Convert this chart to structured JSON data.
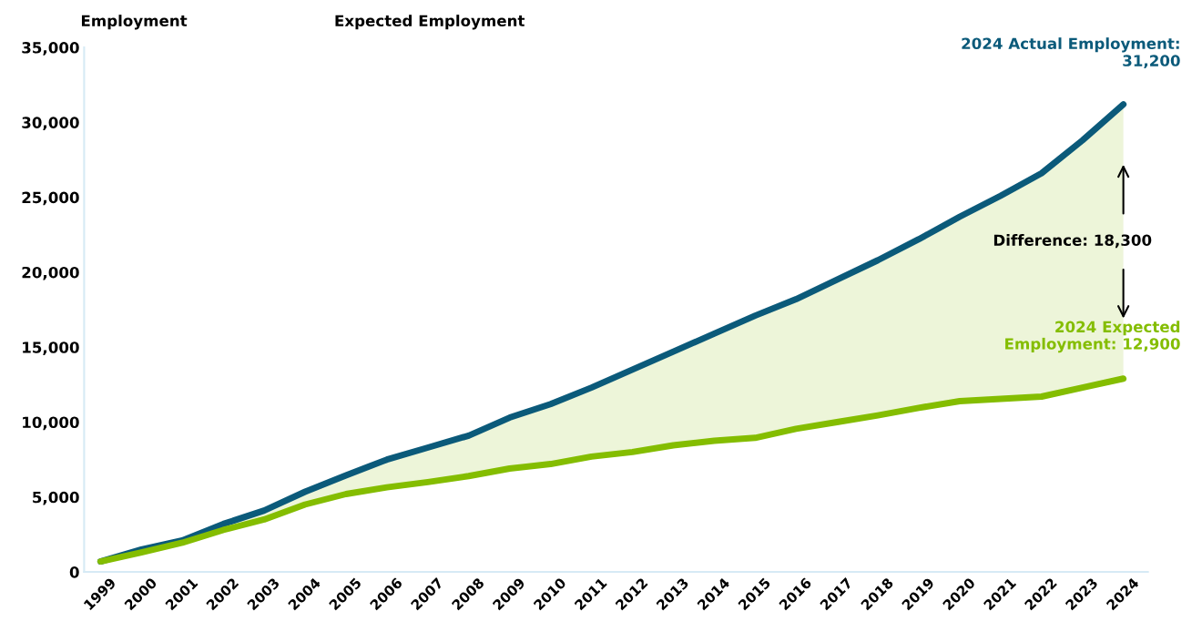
{
  "chart_data": {
    "type": "line",
    "ylabel": "Employment",
    "categories": [
      "1999",
      "2000",
      "2001",
      "2002",
      "2003",
      "2004",
      "2005",
      "2006",
      "2007",
      "2008",
      "2009",
      "2010",
      "2011",
      "2012",
      "2013",
      "2014",
      "2015",
      "2016",
      "2017",
      "2018",
      "2019",
      "2020",
      "2021",
      "2022",
      "2023",
      "2024"
    ],
    "series": [
      {
        "color": "#0b5a7a",
        "values": [
          700,
          1500,
          2100,
          3200,
          4100,
          5350,
          6450,
          7500,
          8300,
          9100,
          10300,
          11200,
          12300,
          13500,
          14700,
          15900,
          17100,
          18200,
          19500,
          20800,
          22200,
          23700,
          25100,
          26600,
          28800,
          31200
        ]
      },
      {
        "color": "#84bd00",
        "values": [
          700,
          1300,
          1950,
          2800,
          3500,
          4500,
          5200,
          5650,
          6000,
          6400,
          6900,
          7200,
          7700,
          8000,
          8450,
          8750,
          8950,
          9550,
          10000,
          10450,
          10950,
          11400,
          11550,
          11700,
          12300,
          12900
        ],
        "lower": [
          700,
          1300,
          1950,
          2800,
          3500,
          4500,
          5200,
          5650,
          6000,
          6400,
          6900,
          7200,
          7700,
          8000,
          8450,
          8750,
          8950,
          9550,
          10000,
          10450,
          10950,
          11400,
          11550,
          11700,
          12300,
          12900
        ],
        "upper": [
          700,
          1500,
          2100,
          3200,
          4100,
          5350,
          6450,
          7500,
          8300,
          9100,
          10300,
          11200,
          12300,
          13500,
          14700,
          15900,
          17100,
          18200,
          19500,
          20800,
          22200,
          23700,
          25100,
          26600,
          28800,
          31200
        ]
      }
    ],
    "ylim": [
      0,
      35000
    ],
    "yticks": [
      {
        "value": 0,
        "label": "0"
      },
      {
        "value": 5000,
        "label": "5,000"
      },
      {
        "value": 10000,
        "label": "10,000"
      },
      {
        "value": 15000,
        "label": "15,000"
      },
      {
        "value": 20000,
        "label": "20,000"
      },
      {
        "value": 25000,
        "label": "25,000"
      },
      {
        "value": 30000,
        "label": "30,000"
      },
      {
        "value": 35000,
        "label": "35,000"
      }
    ],
    "annotations": [
      "Expected Employment",
      {
        "text": "2024 Actual Employment:\n31,200",
        "x": "2024",
        "y": 31200
      },
      {
        "text": "Difference: 18,300",
        "x": "2024",
        "y": 22050
      },
      {
        "text": "2024 Expected\nEmployment: 12,900",
        "x": "2024",
        "y": 12900
      }
    ],
    "grid": false,
    "legend": false,
    "marker": "none",
    "line_style": "solid"
  }
}
